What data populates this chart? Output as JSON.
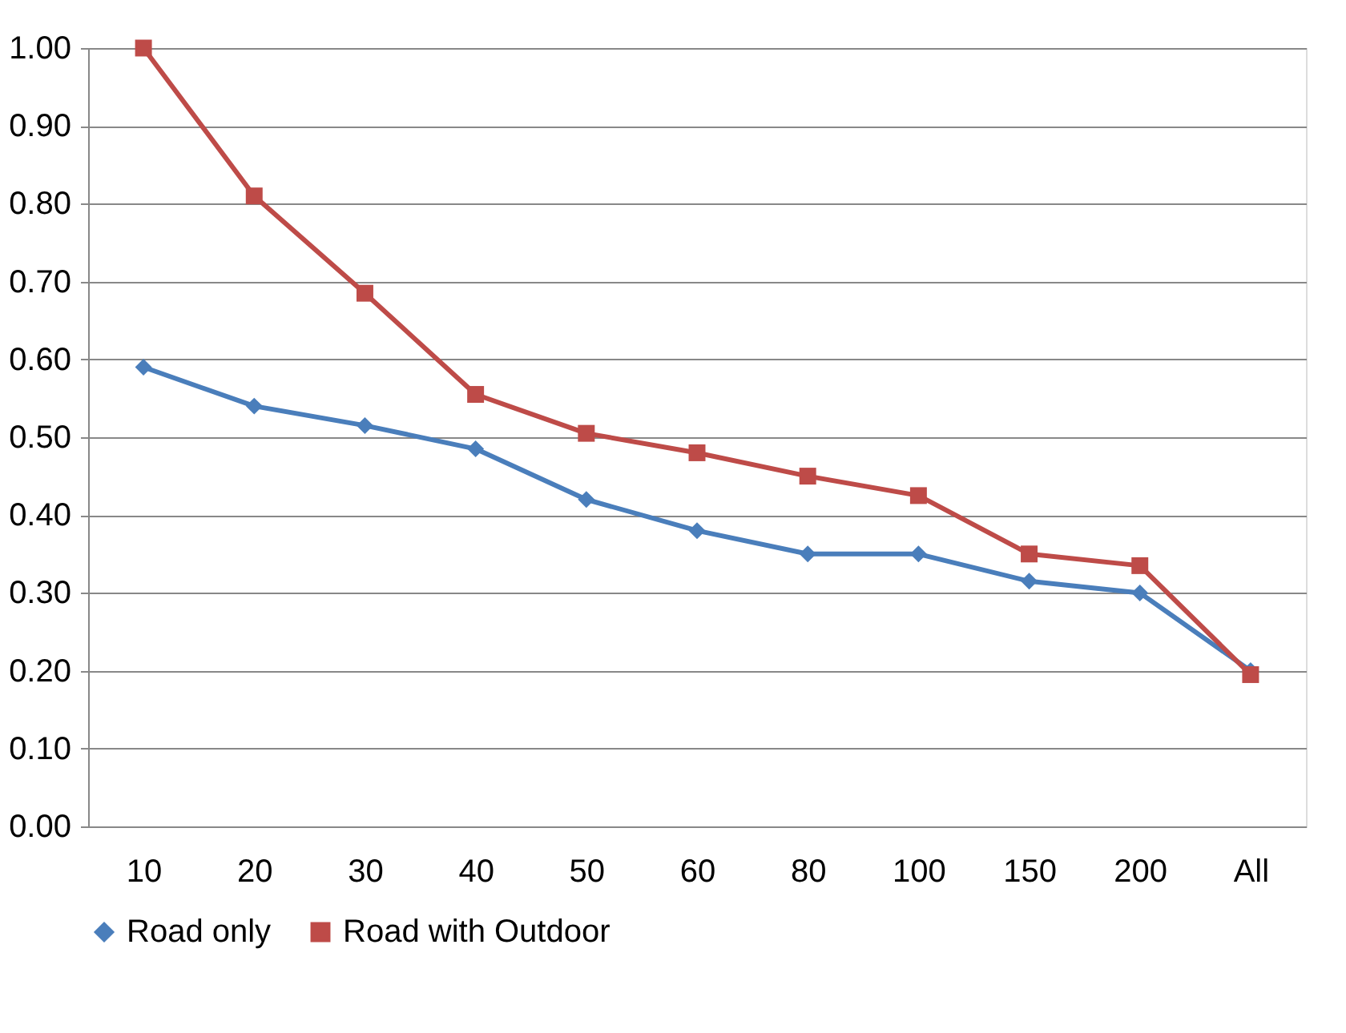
{
  "chart_data": {
    "type": "line",
    "categories": [
      "10",
      "20",
      "30",
      "40",
      "50",
      "60",
      "80",
      "100",
      "150",
      "200",
      "All"
    ],
    "series": [
      {
        "name": "Road only",
        "color": "#4a7ebb",
        "marker": "diamond",
        "values": [
          0.59,
          0.54,
          0.515,
          0.485,
          0.42,
          0.38,
          0.35,
          0.35,
          0.315,
          0.3,
          0.2
        ]
      },
      {
        "name": "Road with Outdoor",
        "color": "#be4b48",
        "marker": "square",
        "values": [
          1.0,
          0.81,
          0.685,
          0.555,
          0.505,
          0.48,
          0.45,
          0.425,
          0.35,
          0.335,
          0.195
        ]
      }
    ],
    "ylim": [
      0,
      1
    ],
    "yticks": [
      {
        "value": 0,
        "label": "0.00"
      },
      {
        "value": 0.1,
        "label": "0.10"
      },
      {
        "value": 0.2,
        "label": "0.20"
      },
      {
        "value": 0.3,
        "label": "0.30"
      },
      {
        "value": 0.4,
        "label": "0.40"
      },
      {
        "value": 0.5,
        "label": "0.50"
      },
      {
        "value": 0.6,
        "label": "0.60"
      },
      {
        "value": 0.7,
        "label": "0.70"
      },
      {
        "value": 0.8,
        "label": "0.80"
      },
      {
        "value": 0.9,
        "label": "0.90"
      },
      {
        "value": 1,
        "label": "1.00"
      }
    ],
    "grid": "y",
    "legend": "bottom",
    "line_style": "solid"
  }
}
